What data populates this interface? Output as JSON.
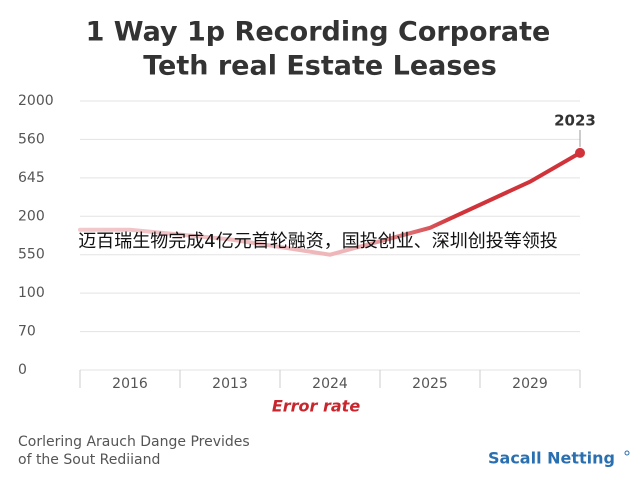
{
  "chart_data": {
    "type": "line",
    "title": [
      "1 Way 1p Recording Corporate",
      "Teth real Estate Leases"
    ],
    "categories": [
      "2016",
      "2013",
      "2024",
      "2025",
      "2029"
    ],
    "series": [
      {
        "name": "Error rate",
        "color": "#d0343a",
        "values": [
          3.65,
          3.4,
          3.0,
          3.7,
          4.9
        ]
      }
    ],
    "end_point": {
      "label": "2023",
      "value": 5.65
    },
    "x_label": "Error rate",
    "ylim": [
      0,
      7
    ],
    "yticks": [
      {
        "value": 0,
        "label": "0"
      },
      {
        "value": 1,
        "label": "70"
      },
      {
        "value": 2,
        "label": "100"
      },
      {
        "value": 3,
        "label": "550"
      },
      {
        "value": 4,
        "label": "200"
      },
      {
        "value": 5,
        "label": "645"
      },
      {
        "value": 6,
        "label": "560"
      },
      {
        "value": 7,
        "label": "2000"
      }
    ],
    "grid": true,
    "overlay_caption": "迈百瑞生物完成4亿元首轮融资，国投创业、深圳创投等领投",
    "footer": [
      "Corlering Arauch Dange Prevides",
      "of the Sout Rediiand"
    ],
    "brand": "Sacall Netting"
  }
}
